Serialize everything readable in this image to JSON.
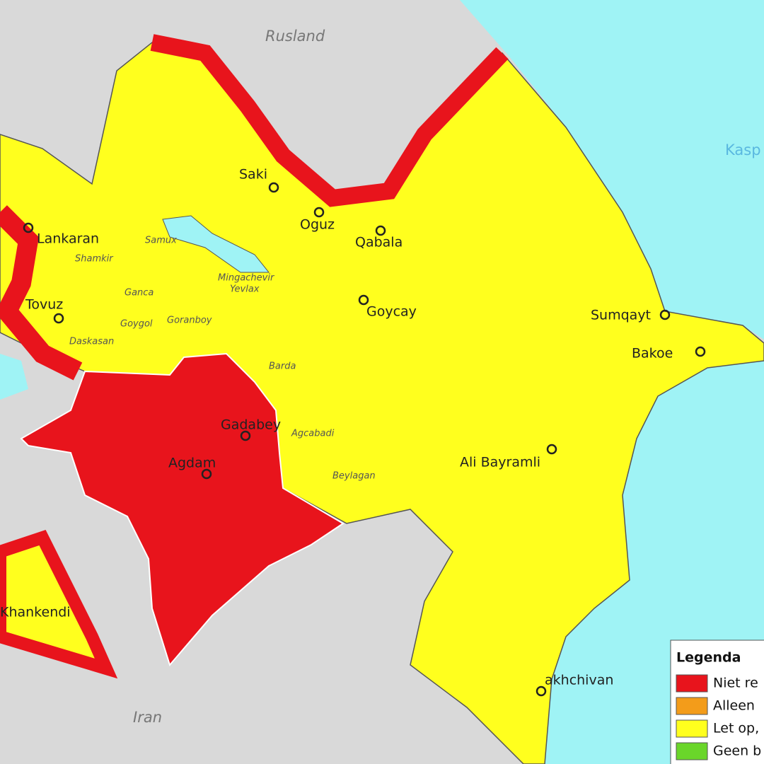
{
  "map": {
    "neighbors": [
      "Rusland",
      "Iran"
    ],
    "sea": "Kasp",
    "cities": [
      "Saki",
      "Oguz",
      "Qabala",
      "Goycay",
      "Sumqayt",
      "Bakoe",
      "Ali Bayramli",
      "Lankaran",
      "Tovuz",
      "Gadabey",
      "Agdam",
      "Khankendi",
      "akhchivan"
    ],
    "districts": [
      "Shamkir",
      "Ganca",
      "Goygol",
      "Goranboy",
      "Daskasan",
      "Barda",
      "Agcabadi",
      "Beylagan",
      "Mingachevir",
      "Yevlax",
      "Samux"
    ],
    "legend": {
      "title": "Legenda",
      "items": [
        {
          "label": "Niet re",
          "color": "#e8141c"
        },
        {
          "label": "Alleen",
          "color": "#f39c1a"
        },
        {
          "label": "Let op,",
          "color": "#ffff1e"
        },
        {
          "label": "Geen b",
          "color": "#6ad62a"
        }
      ]
    }
  }
}
